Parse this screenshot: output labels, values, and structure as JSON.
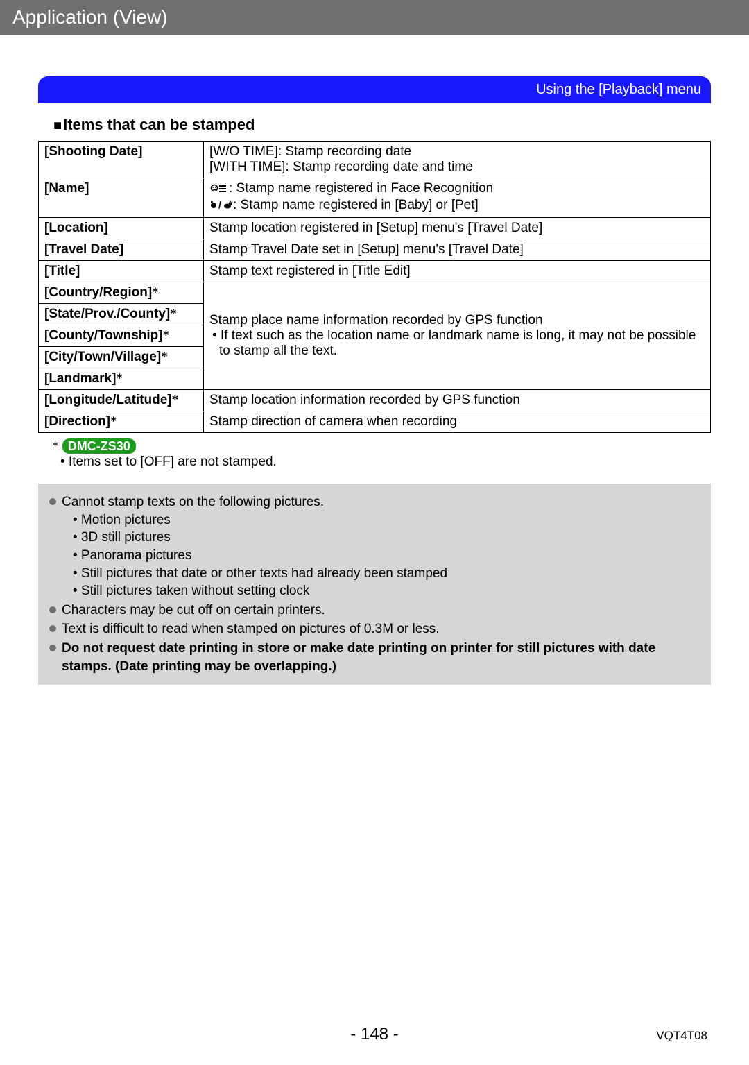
{
  "titlebar": "Application (View)",
  "ribbon": "Using the [Playback] menu",
  "heading": "Items that can be stamped",
  "table": {
    "rows": [
      {
        "label": "[Shooting Date]",
        "desc_lines": [
          "[W/O TIME]: Stamp recording date",
          "[WITH TIME]: Stamp recording date and time"
        ]
      },
      {
        "label": "[Name]",
        "desc_lines_icons": [
          {
            "icon": "face",
            "text": ": Stamp name registered in Face Recognition"
          },
          {
            "icon": "babypet",
            "text": ": Stamp name registered in [Baby] or [Pet]"
          }
        ]
      },
      {
        "label": "[Location]",
        "desc": "Stamp location registered in [Setup] menu's [Travel Date]"
      },
      {
        "label": "[Travel Date]",
        "desc": "Stamp Travel Date set in [Setup] menu's [Travel Date]"
      },
      {
        "label": "[Title]",
        "desc": "Stamp text registered in [Title Edit]"
      },
      {
        "label": "[Country/Region]*",
        "merge_start": true
      },
      {
        "label": "[State/Prov./County]*"
      },
      {
        "label": "[County/Township]*"
      },
      {
        "label": "[City/Town/Village]*"
      },
      {
        "label": "[Landmark]*"
      },
      {
        "label": "[Longitude/Latitude]*",
        "desc": "Stamp location information recorded by GPS function"
      },
      {
        "label": "[Direction]*",
        "desc": "Stamp direction of camera when recording"
      }
    ],
    "merged_desc_main": "Stamp place name information recorded by GPS function",
    "merged_desc_sub": "• If text such as the location name or landmark name is long, it may not be possible to stamp all the text."
  },
  "after_table": {
    "asterisk": "*",
    "model": "DMC-ZS30",
    "line": "• Items set to [OFF] are not stamped."
  },
  "notes": {
    "n1": "Cannot stamp texts on the following pictures.",
    "subs": [
      "• Motion pictures",
      "• 3D still pictures",
      "• Panorama pictures",
      "• Still pictures that date or other texts had already been stamped",
      "• Still pictures taken without setting clock"
    ],
    "n2": "Characters may be cut off on certain printers.",
    "n3": "Text is difficult to read when stamped on pictures of 0.3M or less.",
    "n4": "Do not request date printing in store or make date printing on printer for still pictures with date stamps. (Date printing may be overlapping.)"
  },
  "footer": {
    "page": "- 148 -",
    "code": "VQT4T08"
  },
  "colors": {
    "titlebar_bg": "#707070",
    "ribbon_bg": "#1a18ff",
    "notes_bg": "#d6d6d6",
    "badge_bg": "#1d9b1d"
  }
}
